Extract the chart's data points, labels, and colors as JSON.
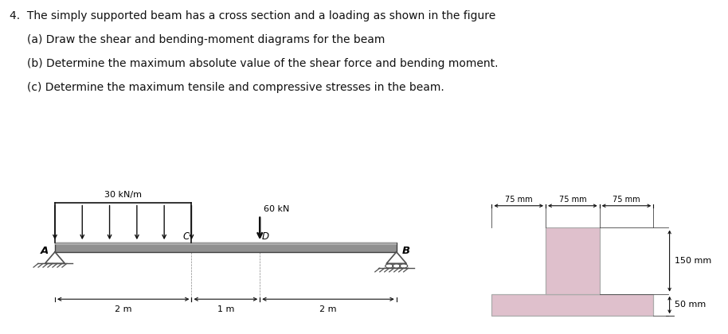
{
  "title_text": "4.  The simply supported beam has a cross section and a loading as shown in the figure",
  "line2": "     (a) Draw the shear and bending-moment diagrams for the beam",
  "line3": "     (b) Determine the maximum absolute value of the shear force and bending moment.",
  "line4": "     (c) Determine the maximum tensile and compressive stresses in the beam.",
  "beam_color": "#909090",
  "support_color": "#606060",
  "cross_fill": "#dfc0cc",
  "cross_stroke": "#aaaaaa",
  "dim_color": "#111111",
  "bg_color": "#ffffff",
  "load_label": "30 kN/m",
  "point_load_label": "60 kN",
  "label_A": "A",
  "label_B": "B",
  "label_C": "C",
  "label_D": "D",
  "dim1": "2 m",
  "dim2": "1 m",
  "dim3": "2 m",
  "cs_dim1": "75 mm",
  "cs_dim2": "75 mm",
  "cs_dim3": "75 mm",
  "cs_height": "150 mm",
  "cs_flange": "50 mm"
}
